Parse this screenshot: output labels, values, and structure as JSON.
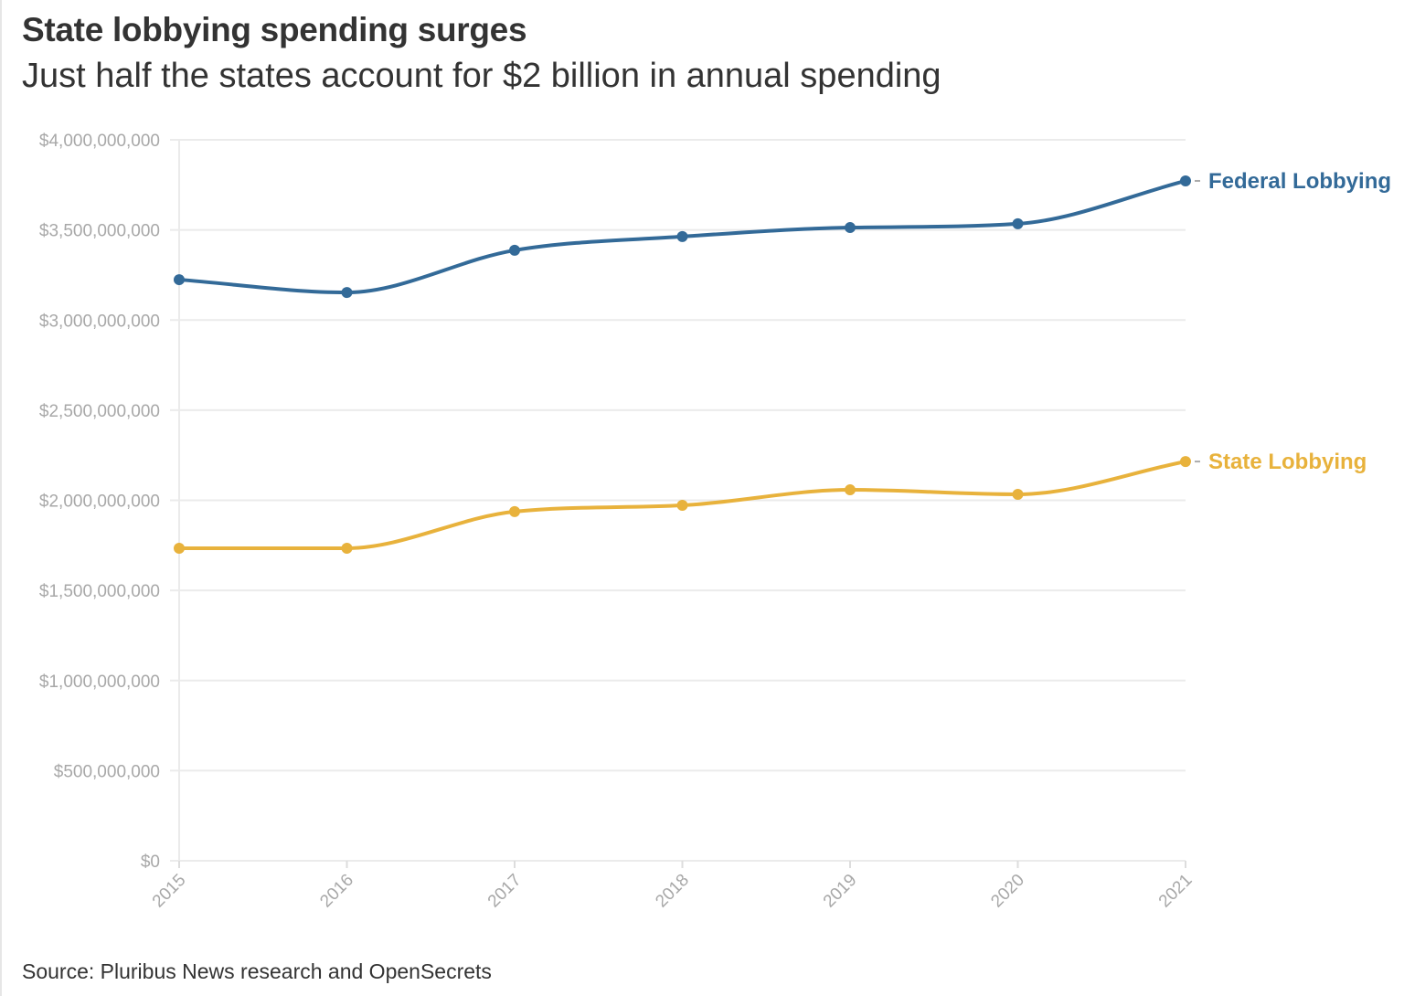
{
  "chart_data": {
    "type": "line",
    "title": "State lobbying spending surges",
    "subtitle": "Just half the states account for $2 billion in annual spending",
    "source": "Source: Pluribus News research and OpenSecrets",
    "xlabel": "",
    "ylabel": "",
    "x": [
      "2015",
      "2016",
      "2017",
      "2018",
      "2019",
      "2020",
      "2021"
    ],
    "ylim": [
      0,
      4000000000
    ],
    "yticks": [
      0,
      500000000,
      1000000000,
      1500000000,
      2000000000,
      2500000000,
      3000000000,
      3500000000,
      4000000000
    ],
    "ytick_labels": [
      "$0",
      "$500,000,000",
      "$1,000,000,000",
      "$1,500,000,000",
      "$2,000,000,000",
      "$2,500,000,000",
      "$3,000,000,000",
      "$3,500,000,000",
      "$4,000,000,000"
    ],
    "grid": true,
    "legend": "direct labels at line ends (right)",
    "series": [
      {
        "name": "Federal Lobbying",
        "color": "#336a98",
        "values": [
          3224000000,
          3153000000,
          3387000000,
          3463000000,
          3513000000,
          3534000000,
          3772000000
        ]
      },
      {
        "name": "State Lobbying",
        "color": "#e8b23c",
        "values": [
          1734000000,
          1734000000,
          1937000000,
          1972000000,
          2058000000,
          2033000000,
          2215000000
        ]
      }
    ]
  }
}
